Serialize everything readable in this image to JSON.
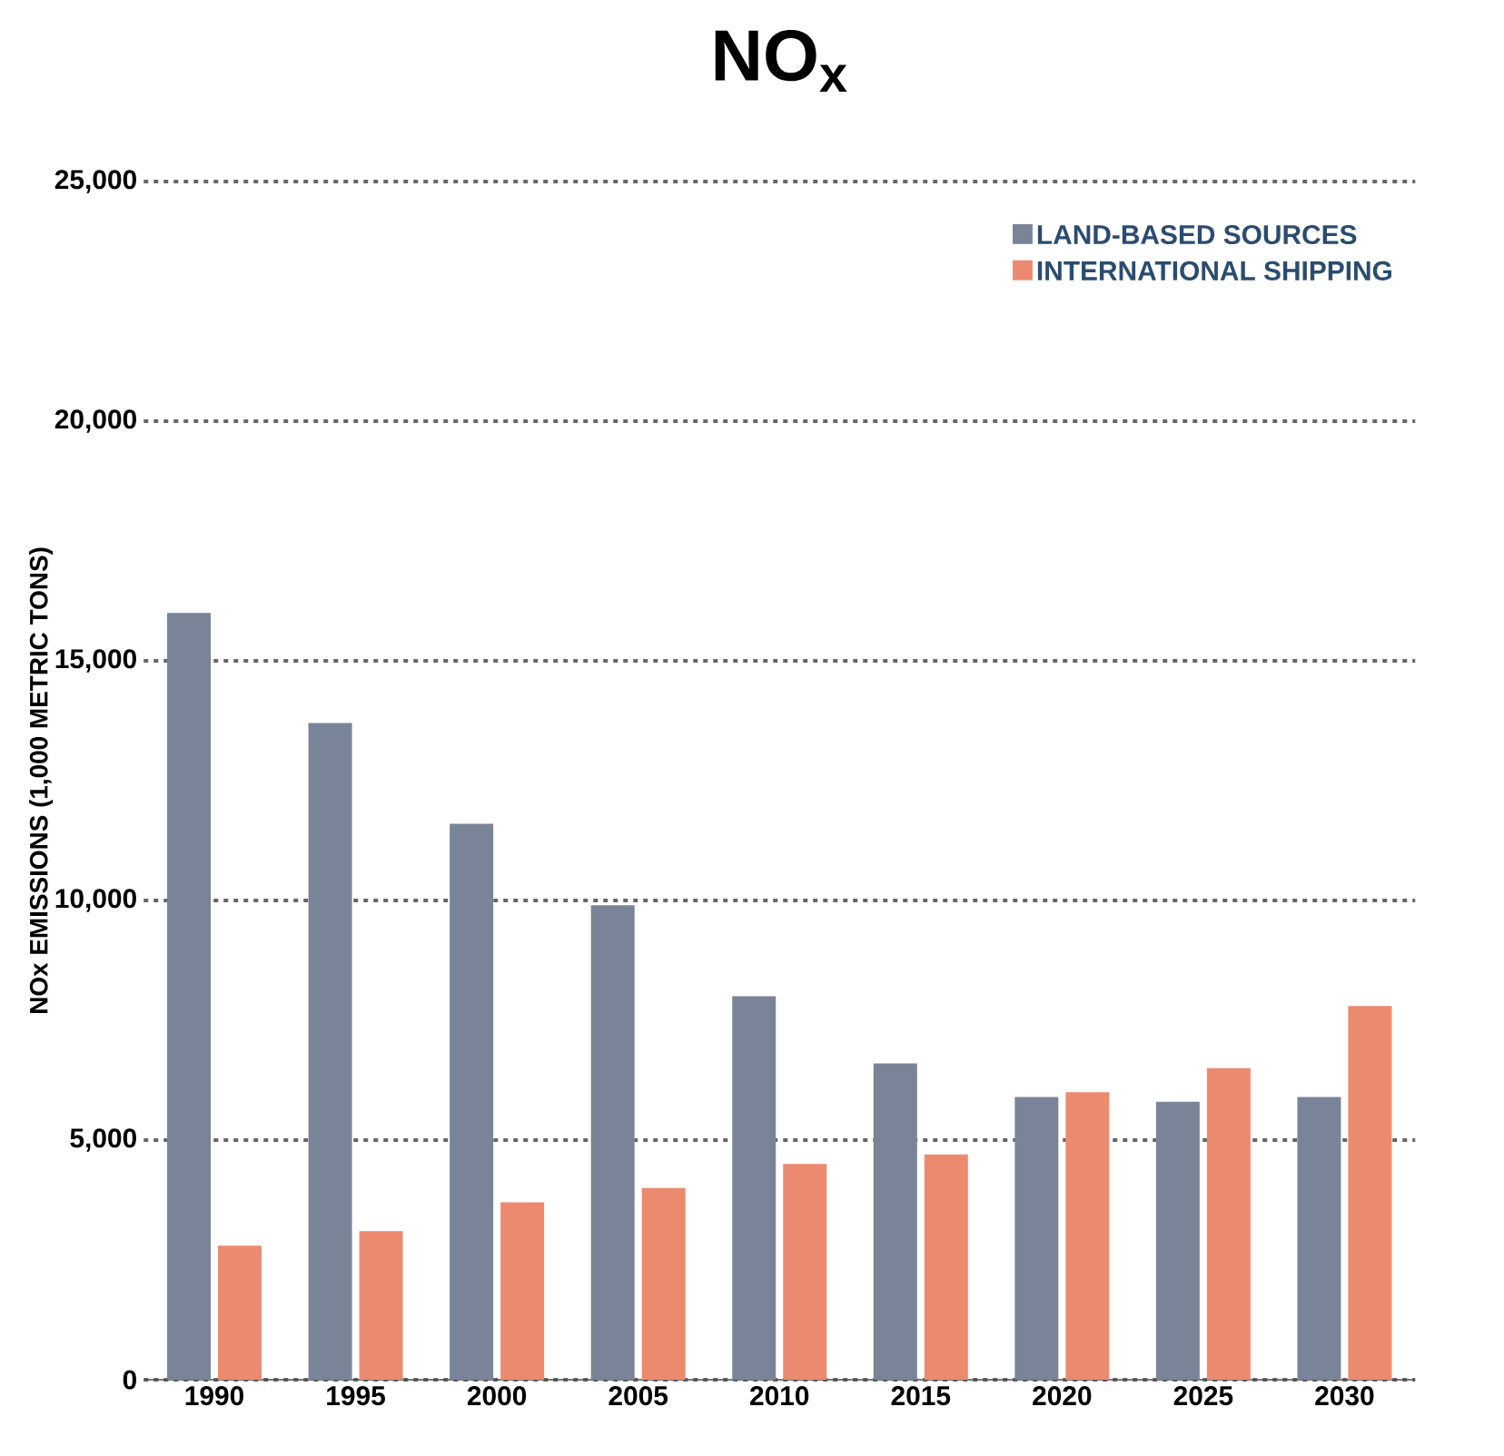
{
  "chart_data": {
    "type": "bar",
    "title": "NO$_{x}$",
    "ylabel": "NOx EMISSIONS (1,000 METRIC TONS)",
    "categories": [
      "1990",
      "1995",
      "2000",
      "2005",
      "2010",
      "2015",
      "2020",
      "2025",
      "2030"
    ],
    "series": [
      {
        "name": "LAND-BASED SOURCES",
        "color": "#7a8499",
        "values": [
          16000,
          13700,
          11600,
          9900,
          8000,
          6600,
          5900,
          5800,
          5900
        ]
      },
      {
        "name": "INTERNATIONAL SHIPPING",
        "color": "#ec8a70",
        "values": [
          2800,
          3100,
          3700,
          4000,
          4500,
          4700,
          6000,
          6500,
          7800
        ]
      }
    ],
    "ylim": [
      0,
      25000
    ],
    "yticks": [
      {
        "value": 0,
        "label": "0"
      },
      {
        "value": 5000,
        "label": "5,000"
      },
      {
        "value": 10000,
        "label": "10,000"
      },
      {
        "value": 15000,
        "label": "15,000"
      },
      {
        "value": 20000,
        "label": "20,000"
      },
      {
        "value": 25000,
        "label": "25,000"
      }
    ],
    "grid": "y",
    "legend": "top right"
  }
}
